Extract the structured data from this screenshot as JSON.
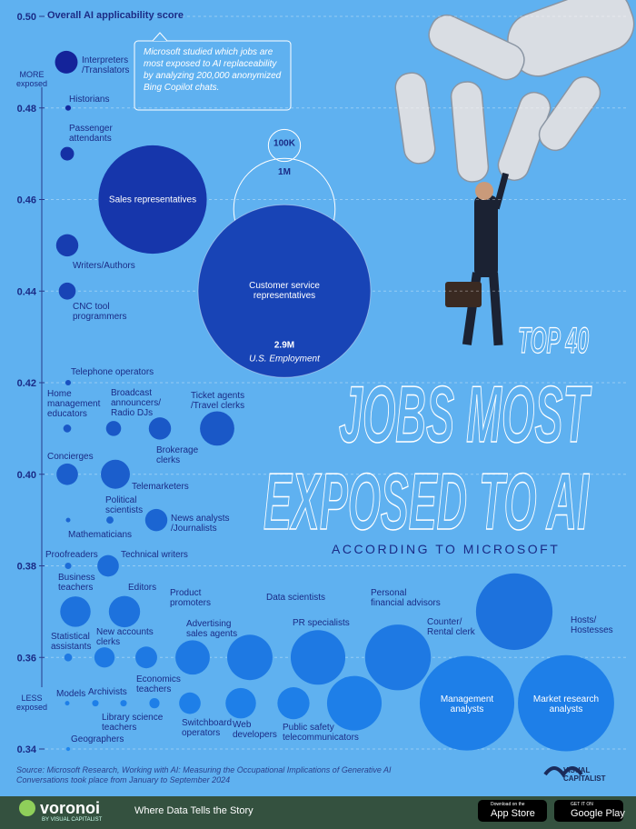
{
  "chart_data": {
    "type": "bubble",
    "title": [
      "JOBS MOST",
      "EXPOSED TO AI"
    ],
    "pretitle": "TOP 40",
    "subtitle": "ACCORDING TO MICROSOFT",
    "y_label": "Overall AI applicability score",
    "annotations": {
      "more": "MORE\nexposed",
      "less": "LESS\nexposed",
      "note": "Microsoft studied which jobs are\nmost exposed to AI replaceability\nby analyzing 200,000 anonymized\nBing Copilot chats."
    },
    "ylim": [
      0.34,
      0.5
    ],
    "yticks": [
      {
        "value": 0.5,
        "label": "0.50"
      },
      0.48,
      0.46,
      0.44,
      0.42,
      {
        "value": 0.4,
        "label": "0.40"
      },
      0.38,
      0.36,
      0.34
    ],
    "grid": true,
    "colors": {
      "low": "#1f86ee",
      "high": "#131c94"
    },
    "size_legend": {
      "title": "U.S. Employment",
      "values": [
        100000,
        1000000,
        2900000
      ],
      "labels": [
        "100K",
        "1M",
        "2.9M"
      ]
    },
    "categories": [
      "Interpreters\n/Translators",
      "Historians",
      "Passenger\nattendants",
      "Sales representatives",
      "Writers/Authors",
      "CNC tool\nprogrammers",
      "Customer service\nrepresentatives",
      "Telephone operators",
      "Home\nmanagement\neducators",
      "Broadcast\nannouncers/\nRadio DJs",
      "Brokerage\nclerks",
      "Ticket agents\n/Travel clerks",
      "Concierges",
      "Telemarketers",
      "Political\nscientists",
      "Mathematicians",
      "News analysts\n/Journalists",
      "Proofreaders",
      "Technical writers",
      "Business\nteachers",
      "Editors",
      "Statistical\nassistants",
      "New accounts\nclerks",
      "Product\npromoters",
      "Advertising\nsales agents",
      "Data scientists",
      "PR specialists",
      "Personal\nfinancial advisors",
      "Counter/\nRental clerk",
      "Hosts/\nHostesses",
      "Management\nanalysts",
      "Market research\nanalysts",
      "Models",
      "Archivists",
      "Library science\nteachers",
      "Economics\nteachers",
      "Switchboard\noperators",
      "Web\ndevelopers",
      "Public safety\ntelecommunicators",
      "Geographers"
    ],
    "values": [
      0.49,
      0.48,
      0.47,
      0.46,
      0.45,
      0.44,
      0.44,
      0.42,
      0.41,
      0.41,
      0.41,
      0.41,
      0.4,
      0.4,
      0.39,
      0.39,
      0.39,
      0.38,
      0.38,
      0.37,
      0.37,
      0.36,
      0.36,
      0.36,
      0.36,
      0.36,
      0.36,
      0.35,
      0.36,
      0.37,
      0.35,
      0.35,
      0.35,
      0.35,
      0.35,
      0.35,
      0.35,
      0.35,
      0.35,
      0.34
    ],
    "sizes": [
      50000,
      3000,
      18000,
      1140000,
      48000,
      28000,
      2900000,
      3000,
      6000,
      22000,
      48000,
      115000,
      45000,
      82000,
      5000,
      2000,
      48000,
      4000,
      45000,
      90000,
      95000,
      6000,
      40000,
      46000,
      115000,
      200000,
      290000,
      290000,
      420000,
      570000,
      870000,
      900000,
      2000,
      4000,
      4000,
      10000,
      45000,
      90000,
      100000,
      1500
    ]
  },
  "source": "Source: Microsoft Research, Working with AI: Measuring the Occupational Implications of Generative AI",
  "footnote": "Conversations took place from January to September 2024",
  "brand": {
    "name": "voronoi",
    "by": "BY VISUAL CAPITALIST",
    "tagline": "Where Data Tells the Story",
    "logo": "VISUAL\nCAPITALIST",
    "apple_small": "Download on the",
    "apple": "App Store",
    "google_small": "GET IT ON",
    "google": "Google Play"
  }
}
